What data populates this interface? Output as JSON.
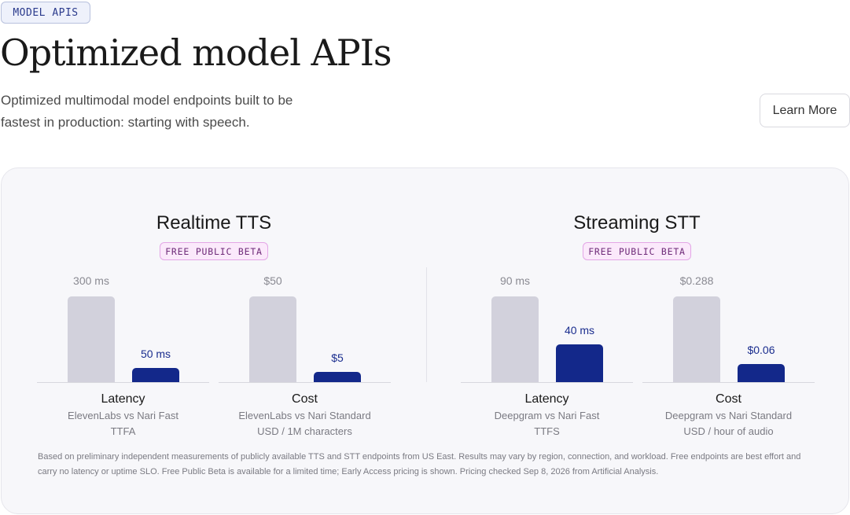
{
  "header": {
    "tag": "MODEL APIS",
    "title": "Optimized model APIs",
    "subtitle": "Optimized multimodal model endpoints built to be fastest in production: starting with speech.",
    "learn_more": "Learn More"
  },
  "sections": [
    {
      "title": "Realtime TTS",
      "badge": "FREE PUBLIC BETA",
      "metrics": [
        {
          "name": "Latency",
          "comparison": "ElevenLabs vs Nari Fast",
          "unit": "TTFA",
          "competitor_label": "300 ms",
          "competitor_value": 300,
          "nari_label": "50 ms",
          "nari_value": 50
        },
        {
          "name": "Cost",
          "comparison": "ElevenLabs vs Nari Standard",
          "unit": "USD / 1M characters",
          "competitor_label": "$50",
          "competitor_value": 50,
          "nari_label": "$5",
          "nari_value": 5
        }
      ]
    },
    {
      "title": "Streaming STT",
      "badge": "FREE PUBLIC BETA",
      "metrics": [
        {
          "name": "Latency",
          "comparison": "Deepgram vs Nari Fast",
          "unit": "TTFS",
          "competitor_label": "90 ms",
          "competitor_value": 90,
          "nari_label": "40 ms",
          "nari_value": 40
        },
        {
          "name": "Cost",
          "comparison": "Deepgram vs Nari Standard",
          "unit": "USD / hour of audio",
          "competitor_label": "$0.288",
          "competitor_value": 0.288,
          "nari_label": "$0.06",
          "nari_value": 0.06
        }
      ]
    }
  ],
  "footnote": "Based on preliminary independent measurements of publicly available TTS and STT endpoints from US East. Results may vary by region, connection, and workload. Free endpoints are best effort and carry no latency or uptime SLO. Free Public Beta is available for a limited time; Early Access pricing is shown. Pricing checked Sep 8, 2026 from Artificial Analysis.",
  "colors": {
    "competitor_bar": "#d2d1dc",
    "nari_bar": "#13288a",
    "badge_bg": "#fbe9fb"
  }
}
